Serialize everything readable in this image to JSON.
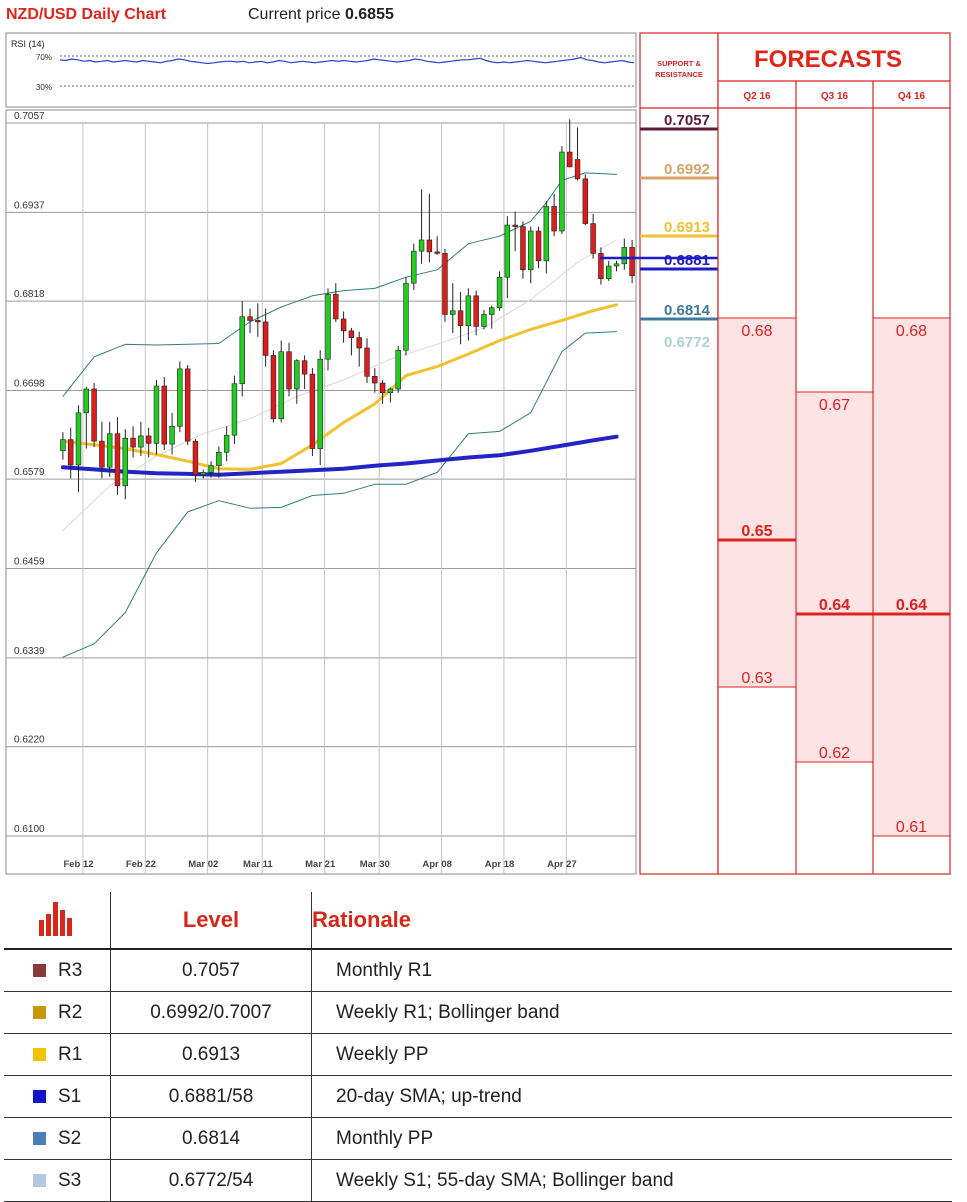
{
  "header": {
    "title": "NZD/USD Daily Chart",
    "price_label": "Current price",
    "price_value": "0.6855"
  },
  "rsi": {
    "label": "RSI (14)",
    "levels": [
      "70%",
      "30%"
    ],
    "values": [
      65,
      64,
      66,
      65,
      63,
      64,
      62,
      63,
      64,
      62,
      63,
      64,
      63,
      62,
      64,
      63,
      62,
      61,
      63,
      64,
      66,
      65,
      63,
      62,
      61,
      60,
      61,
      62,
      63,
      63,
      62,
      63,
      61,
      62,
      63,
      61,
      62,
      64,
      63,
      61,
      62,
      63,
      62,
      61,
      62,
      63,
      64,
      63,
      64,
      63,
      62,
      63,
      64,
      66,
      65,
      64,
      63,
      62,
      63,
      64,
      66,
      65,
      63,
      62,
      61,
      62,
      63,
      64,
      65,
      65,
      66,
      67,
      64,
      62,
      61,
      62,
      61,
      62,
      63,
      64,
      63,
      62,
      61,
      62,
      63,
      64,
      65,
      66,
      68,
      65,
      64,
      62,
      61,
      62,
      63,
      64,
      62,
      61
    ]
  },
  "support_resistance": {
    "heading": "SUPPORT & RESISTANCE",
    "levels": [
      {
        "value": "0.7057",
        "color": "#5c1b38"
      },
      {
        "value": "0.6992",
        "color": "#d4a46a"
      },
      {
        "value": "0.6913",
        "color": "#f2c12e"
      },
      {
        "value": "0.6881",
        "color": "#1b1bc8"
      },
      {
        "value": "0.6814",
        "color": "#3f7aa0"
      },
      {
        "value": "0.6772",
        "color": "#a9d4d2"
      }
    ]
  },
  "forecasts": {
    "title": "FORECASTS",
    "accent": "#e0251b",
    "columns": [
      {
        "label": "Q2 16",
        "high": "0.68",
        "mid": "0.65",
        "low": "0.63"
      },
      {
        "label": "Q3 16",
        "high": "0.67",
        "mid": "0.64",
        "low": "0.62"
      },
      {
        "label": "Q4 16",
        "high": "0.68",
        "mid": "0.64",
        "low": "0.61"
      }
    ]
  },
  "chart_data": {
    "type": "candlestick",
    "title": "NZD/USD Daily Chart",
    "y_ticks": [
      "0.7057",
      "0.6937",
      "0.6818",
      "0.6698",
      "0.6579",
      "0.6459",
      "0.6339",
      "0.6220",
      "0.6100"
    ],
    "x_ticks": [
      "Feb 12",
      "Feb 22",
      "Mar 02",
      "Mar 11",
      "Mar 21",
      "Mar 30",
      "Apr 08",
      "Apr 18",
      "Apr 27"
    ],
    "ylim": [
      0.61,
      0.7057
    ],
    "grid": true,
    "up_color": "#22cc22",
    "down_color": "#dd1c1c",
    "candles": [
      [
        0.6617,
        0.6642,
        0.6605,
        0.6632
      ],
      [
        0.6632,
        0.6648,
        0.658,
        0.6598
      ],
      [
        0.6598,
        0.6678,
        0.6562,
        0.6668
      ],
      [
        0.6668,
        0.6703,
        0.662,
        0.67
      ],
      [
        0.67,
        0.6708,
        0.6622,
        0.663
      ],
      [
        0.663,
        0.6656,
        0.658,
        0.6595
      ],
      [
        0.6595,
        0.6656,
        0.6582,
        0.664
      ],
      [
        0.664,
        0.6662,
        0.6558,
        0.657
      ],
      [
        0.657,
        0.6646,
        0.6552,
        0.6634
      ],
      [
        0.6634,
        0.665,
        0.6608,
        0.6622
      ],
      [
        0.6622,
        0.6656,
        0.661,
        0.6637
      ],
      [
        0.6637,
        0.6648,
        0.6608,
        0.6627
      ],
      [
        0.6627,
        0.6712,
        0.6612,
        0.6704
      ],
      [
        0.6704,
        0.6716,
        0.6618,
        0.6626
      ],
      [
        0.6626,
        0.6668,
        0.6612,
        0.665
      ],
      [
        0.665,
        0.6737,
        0.6642,
        0.6727
      ],
      [
        0.6727,
        0.6732,
        0.6625,
        0.663
      ],
      [
        0.663,
        0.6633,
        0.6575,
        0.6585
      ],
      [
        0.6585,
        0.6592,
        0.658,
        0.6588
      ],
      [
        0.6588,
        0.6603,
        0.6581,
        0.6597
      ],
      [
        0.6597,
        0.6623,
        0.6581,
        0.6615
      ],
      [
        0.6615,
        0.665,
        0.6603,
        0.6638
      ],
      [
        0.6638,
        0.6718,
        0.6626,
        0.6707
      ],
      [
        0.6707,
        0.6818,
        0.669,
        0.6797
      ],
      [
        0.6797,
        0.6808,
        0.6775,
        0.6792
      ],
      [
        0.6792,
        0.6815,
        0.677,
        0.679
      ],
      [
        0.679,
        0.6808,
        0.673,
        0.6745
      ],
      [
        0.6745,
        0.6752,
        0.6655,
        0.666
      ],
      [
        0.666,
        0.6765,
        0.6655,
        0.675
      ],
      [
        0.675,
        0.6762,
        0.669,
        0.67
      ],
      [
        0.67,
        0.674,
        0.668,
        0.6738
      ],
      [
        0.6738,
        0.6745,
        0.67,
        0.672
      ],
      [
        0.672,
        0.6728,
        0.661,
        0.662
      ],
      [
        0.662,
        0.6752,
        0.6598,
        0.674
      ],
      [
        0.674,
        0.6835,
        0.6725,
        0.6827
      ],
      [
        0.6827,
        0.6842,
        0.679,
        0.6794
      ],
      [
        0.6794,
        0.6804,
        0.6762,
        0.6778
      ],
      [
        0.6778,
        0.6782,
        0.6745,
        0.6769
      ],
      [
        0.6769,
        0.6777,
        0.673,
        0.6755
      ],
      [
        0.6755,
        0.6768,
        0.6708,
        0.6717
      ],
      [
        0.6717,
        0.6728,
        0.6695,
        0.6708
      ],
      [
        0.6708,
        0.6712,
        0.668,
        0.6695
      ],
      [
        0.6695,
        0.6702,
        0.6682,
        0.67
      ],
      [
        0.67,
        0.6758,
        0.6695,
        0.6752
      ],
      [
        0.6752,
        0.685,
        0.6745,
        0.6842
      ],
      [
        0.6842,
        0.6895,
        0.6833,
        0.6885
      ],
      [
        0.6885,
        0.6968,
        0.6868,
        0.69
      ],
      [
        0.69,
        0.6962,
        0.687,
        0.6884
      ],
      [
        0.6884,
        0.6905,
        0.688,
        0.6882
      ],
      [
        0.6882,
        0.6888,
        0.679,
        0.68
      ],
      [
        0.68,
        0.6842,
        0.6775,
        0.6805
      ],
      [
        0.6805,
        0.683,
        0.676,
        0.6785
      ],
      [
        0.6785,
        0.6835,
        0.6765,
        0.6825
      ],
      [
        0.6825,
        0.6832,
        0.6772,
        0.6784
      ],
      [
        0.6784,
        0.6806,
        0.678,
        0.68
      ],
      [
        0.68,
        0.6812,
        0.6781,
        0.6809
      ],
      [
        0.6809,
        0.6858,
        0.6805,
        0.685
      ],
      [
        0.685,
        0.6932,
        0.6822,
        0.692
      ],
      [
        0.692,
        0.6938,
        0.6885,
        0.6918
      ],
      [
        0.6918,
        0.6925,
        0.6848,
        0.686
      ],
      [
        0.686,
        0.6918,
        0.6842,
        0.6912
      ],
      [
        0.6912,
        0.6918,
        0.6862,
        0.6872
      ],
      [
        0.6872,
        0.6952,
        0.6855,
        0.6945
      ],
      [
        0.6945,
        0.6962,
        0.6905,
        0.6912
      ],
      [
        0.6912,
        0.7026,
        0.6908,
        0.7018
      ],
      [
        0.7018,
        0.7062,
        0.6998,
        0.6998
      ],
      [
        0.7008,
        0.7051,
        0.698,
        0.6982
      ],
      [
        0.6982,
        0.6988,
        0.692,
        0.6922
      ],
      [
        0.6922,
        0.6935,
        0.6875,
        0.6882
      ],
      [
        0.6882,
        0.689,
        0.684,
        0.6848
      ],
      [
        0.6848,
        0.6872,
        0.6845,
        0.6865
      ],
      [
        0.6865,
        0.6872,
        0.6858,
        0.6868
      ],
      [
        0.6868,
        0.6902,
        0.686,
        0.689
      ],
      [
        0.689,
        0.69,
        0.6842,
        0.6852
      ]
    ],
    "indicators": [
      {
        "name": "bb-upper",
        "color": "#2e7d7d",
        "width": 1,
        "x": [
          0,
          4,
          8,
          12,
          16,
          20,
          24,
          28,
          32,
          36,
          40,
          44,
          48,
          52,
          56,
          60,
          62,
          64,
          67,
          71
        ],
        "y": [
          0.669,
          0.6743,
          0.676,
          0.6759,
          0.676,
          0.6761,
          0.679,
          0.681,
          0.6825,
          0.6832,
          0.6835,
          0.685,
          0.686,
          0.6895,
          0.6905,
          0.6925,
          0.695,
          0.698,
          0.699,
          0.6988
        ]
      },
      {
        "name": "bb-lower",
        "color": "#2e7d7d",
        "width": 1,
        "x": [
          0,
          4,
          8,
          12,
          16,
          20,
          24,
          28,
          32,
          36,
          40,
          44,
          48,
          52,
          56,
          60,
          64,
          67,
          71
        ],
        "y": [
          0.634,
          0.6358,
          0.64,
          0.648,
          0.6535,
          0.655,
          0.654,
          0.6541,
          0.6557,
          0.656,
          0.6572,
          0.6572,
          0.6588,
          0.664,
          0.6643,
          0.6668,
          0.675,
          0.6775,
          0.6777
        ]
      },
      {
        "name": "sma-20",
        "color": "#d8d8d8",
        "width": 1,
        "x": [
          0,
          6,
          12,
          18,
          24,
          30,
          36,
          42,
          48,
          54,
          60,
          66,
          71
        ],
        "y": [
          0.651,
          0.657,
          0.661,
          0.664,
          0.666,
          0.669,
          0.6712,
          0.674,
          0.676,
          0.6782,
          0.682,
          0.687,
          0.69
        ]
      },
      {
        "name": "sma-55",
        "color": "#f2c12e",
        "width": 3,
        "x": [
          0,
          4,
          8,
          12,
          16,
          20,
          24,
          28,
          32,
          36,
          40,
          44,
          48,
          52,
          56,
          60,
          64,
          68,
          71
        ],
        "y": [
          0.663,
          0.6625,
          0.662,
          0.6612,
          0.6603,
          0.6593,
          0.6592,
          0.66,
          0.6625,
          0.6655,
          0.668,
          0.6718,
          0.673,
          0.6747,
          0.6765,
          0.678,
          0.6792,
          0.6805,
          0.6813
        ]
      },
      {
        "name": "sma-200",
        "color": "#2424c4",
        "width": 4,
        "x": [
          0,
          4,
          8,
          12,
          16,
          20,
          24,
          28,
          32,
          36,
          40,
          44,
          48,
          52,
          56,
          60,
          64,
          68,
          71
        ],
        "y": [
          0.6595,
          0.6592,
          0.6589,
          0.6587,
          0.6586,
          0.6585,
          0.6587,
          0.6589,
          0.6591,
          0.6593,
          0.6597,
          0.66,
          0.6604,
          0.6608,
          0.6611,
          0.6617,
          0.6624,
          0.6631,
          0.6636
        ]
      }
    ]
  },
  "table": {
    "headers": {
      "level": "Level",
      "rationale": "Rationale"
    },
    "rows": [
      {
        "name": "R3",
        "level": "0.7057",
        "rationale": "Monthly R1",
        "color": "#8b3a3a"
      },
      {
        "name": "R2",
        "level": "0.6992/0.7007",
        "rationale": "Weekly R1; Bollinger band",
        "color": "#c8960c"
      },
      {
        "name": "R1",
        "level": "0.6913",
        "rationale": "Weekly PP",
        "color": "#f2c200"
      },
      {
        "name": "S1",
        "level": "0.6881/58",
        "rationale": "20-day SMA; up-trend",
        "color": "#1414c8"
      },
      {
        "name": "S2",
        "level": "0.6814",
        "rationale": "Monthly PP",
        "color": "#4a7fb5"
      },
      {
        "name": "S3",
        "level": "0.6772/54",
        "rationale": "Weekly S1; 55-day SMA; Bollinger band",
        "color": "#b4c8e4"
      }
    ]
  }
}
